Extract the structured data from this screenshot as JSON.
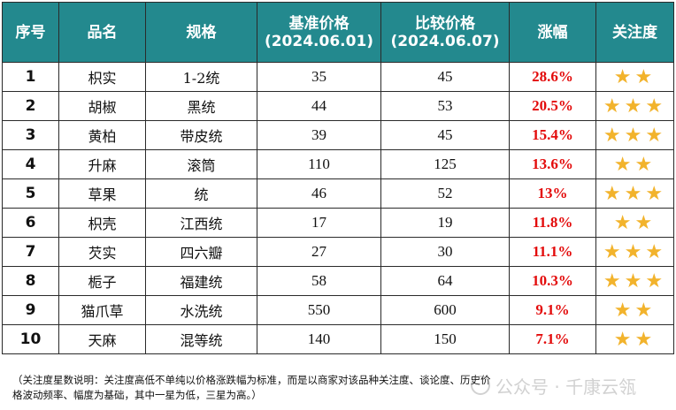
{
  "table": {
    "headers": {
      "index": "序号",
      "name": "品名",
      "spec": "规格",
      "base_price_line1": "基准价格",
      "base_price_line2": "(2024.06.01)",
      "compare_price_line1": "比较价格",
      "compare_price_line2": "(2024.06.07)",
      "change": "涨幅",
      "attention": "关注度"
    },
    "rows": [
      {
        "index": "1",
        "name": "枳实",
        "spec": "1-2统",
        "base": "35",
        "compare": "45",
        "change": "28.6%",
        "stars": "★★"
      },
      {
        "index": "2",
        "name": "胡椒",
        "spec": "黑统",
        "base": "44",
        "compare": "53",
        "change": "20.5%",
        "stars": "★★★"
      },
      {
        "index": "3",
        "name": "黄柏",
        "spec": "带皮统",
        "base": "39",
        "compare": "45",
        "change": "15.4%",
        "stars": "★★★"
      },
      {
        "index": "4",
        "name": "升麻",
        "spec": "滚筒",
        "base": "110",
        "compare": "125",
        "change": "13.6%",
        "stars": "★★"
      },
      {
        "index": "5",
        "name": "草果",
        "spec": "统",
        "base": "46",
        "compare": "52",
        "change": "13%",
        "stars": "★★★"
      },
      {
        "index": "6",
        "name": "枳壳",
        "spec": "江西统",
        "base": "17",
        "compare": "19",
        "change": "11.8%",
        "stars": "★★"
      },
      {
        "index": "7",
        "name": "芡实",
        "spec": "四六瓣",
        "base": "27",
        "compare": "30",
        "change": "11.1%",
        "stars": "★★★"
      },
      {
        "index": "8",
        "name": "栀子",
        "spec": "福建统",
        "base": "58",
        "compare": "64",
        "change": "10.3%",
        "stars": "★★★"
      },
      {
        "index": "9",
        "name": "猫爪草",
        "spec": "水洗统",
        "base": "550",
        "compare": "600",
        "change": "9.1%",
        "stars": "★★"
      },
      {
        "index": "10",
        "name": "天麻",
        "spec": "混等统",
        "base": "140",
        "compare": "150",
        "change": "7.1%",
        "stars": "★★"
      }
    ]
  },
  "note": {
    "line1": "（关注度星数说明：关注度高低不单纯以价格涨跌幅为标准，而是以商家对该品种关注度、谈论度、历史价",
    "line2": "格波动频率、幅度为基础，其中一星为低，三星为高。）"
  },
  "watermark": "公众号 · 千康云瓴",
  "colors": {
    "header_bg": "#23898e",
    "change_red": "#e30b0b",
    "star_gold": "#f2b32c"
  },
  "icons": {
    "star": "star-icon"
  }
}
